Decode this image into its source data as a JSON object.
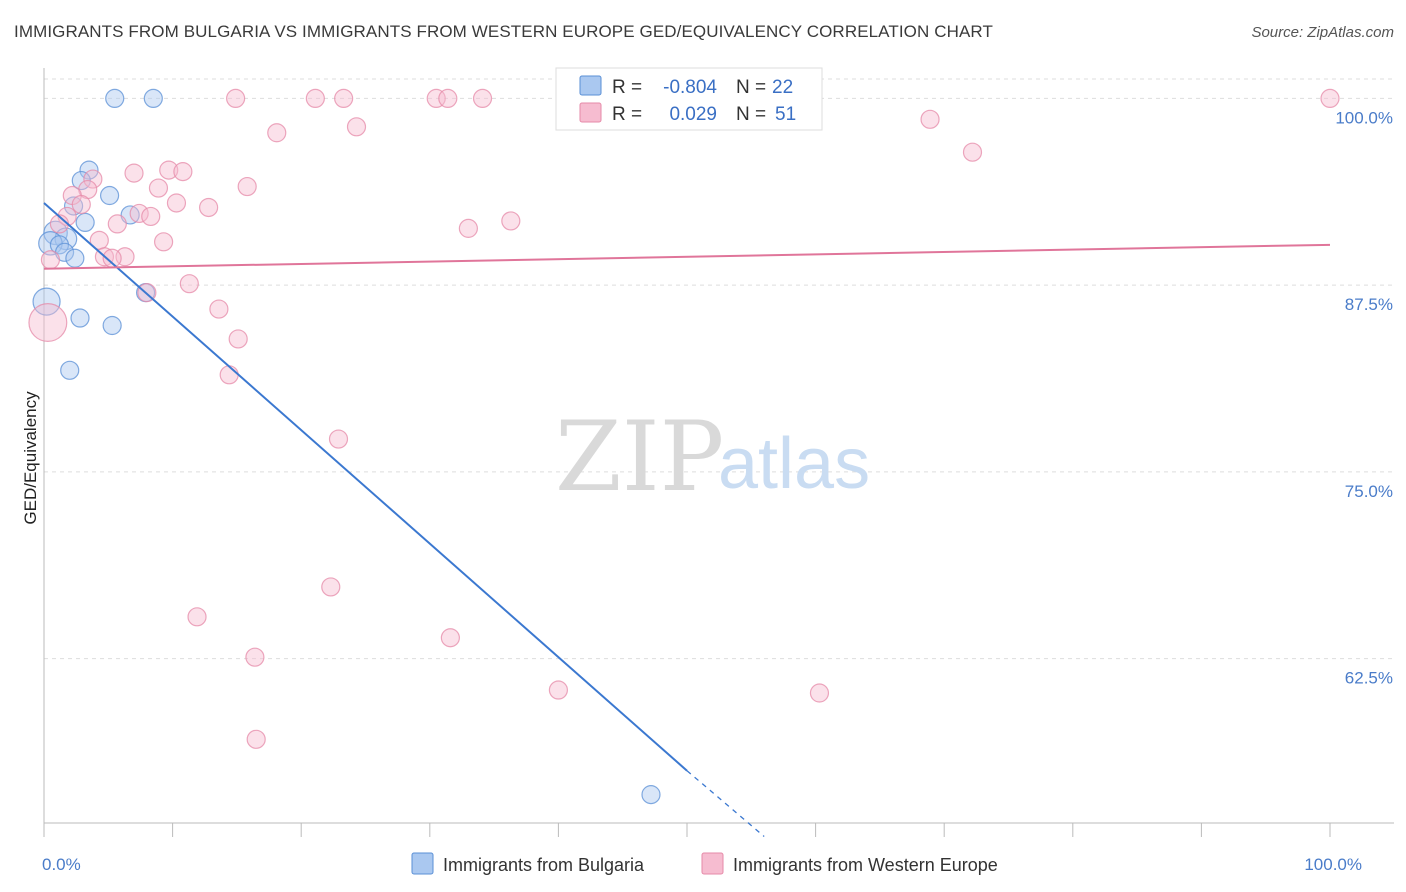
{
  "title": "IMMIGRANTS FROM BULGARIA VS IMMIGRANTS FROM WESTERN EUROPE GED/EQUIVALENCY CORRELATION CHART",
  "source": "Source: ZipAtlas.com",
  "watermark": {
    "zip": "ZIP",
    "atlas": "atlas"
  },
  "colors": {
    "bulgaria_fill": "#aac8f0",
    "bulgaria_stroke": "#5a8fd6",
    "bulgaria_line": "#3b78d0",
    "western_fill": "#f6bcd0",
    "western_stroke": "#e68aa8",
    "western_line": "#e0759a",
    "grid": "#dddddd",
    "axis": "#bbbbbb",
    "tick_text": "#4a7cc9"
  },
  "legend_box": {
    "rows": [
      {
        "r_label": "R =",
        "r_value": "-0.804",
        "n_label": "N =",
        "n_value": "22",
        "series": "bulgaria"
      },
      {
        "r_label": "R =",
        "r_value": "0.029",
        "n_label": "N =",
        "n_value": "51",
        "series": "western"
      }
    ]
  },
  "bottom_legend": [
    {
      "label": "Immigrants from Bulgaria",
      "series": "bulgaria"
    },
    {
      "label": "Immigrants from Western Europe",
      "series": "western"
    }
  ],
  "chart_data": {
    "type": "scatter",
    "xlabel": "",
    "ylabel": "GED/Equivalency",
    "xlim": [
      0,
      100
    ],
    "ylim": [
      51.5,
      101.5
    ],
    "x_tick_labels": [
      {
        "value": 0,
        "label": "0.0%"
      },
      {
        "value": 100,
        "label": "100.0%"
      }
    ],
    "y_tick_labels": [
      {
        "value": 100,
        "label": "100.0%"
      },
      {
        "value": 87.5,
        "label": "87.5%"
      },
      {
        "value": 75,
        "label": "75.0%"
      },
      {
        "value": 62.5,
        "label": "62.5%"
      }
    ],
    "x_minor_ticks": [
      0,
      10,
      20,
      30,
      40,
      50,
      60,
      70,
      80,
      90,
      100
    ],
    "grid": true,
    "series": [
      {
        "name": "Immigrants from Bulgaria",
        "key": "bulgaria",
        "points": [
          {
            "x": 5.5,
            "y": 100.0,
            "s": 1
          },
          {
            "x": 8.5,
            "y": 100.0,
            "s": 1
          },
          {
            "x": 3.5,
            "y": 95.2,
            "s": 1
          },
          {
            "x": 2.9,
            "y": 94.5,
            "s": 1
          },
          {
            "x": 5.1,
            "y": 93.5,
            "s": 1
          },
          {
            "x": 2.3,
            "y": 92.8,
            "s": 1
          },
          {
            "x": 6.7,
            "y": 92.2,
            "s": 1
          },
          {
            "x": 3.2,
            "y": 91.7,
            "s": 1
          },
          {
            "x": 0.9,
            "y": 91.0,
            "s": 1.3
          },
          {
            "x": 1.7,
            "y": 90.6,
            "s": 1.2
          },
          {
            "x": 0.5,
            "y": 90.3,
            "s": 1.3
          },
          {
            "x": 1.2,
            "y": 90.2,
            "s": 1
          },
          {
            "x": 1.6,
            "y": 89.7,
            "s": 1
          },
          {
            "x": 2.4,
            "y": 89.3,
            "s": 1
          },
          {
            "x": 7.9,
            "y": 87.0,
            "s": 1
          },
          {
            "x": 0.2,
            "y": 86.4,
            "s": 1.5
          },
          {
            "x": 2.8,
            "y": 85.3,
            "s": 1
          },
          {
            "x": 5.3,
            "y": 84.8,
            "s": 1
          },
          {
            "x": 2.0,
            "y": 81.8,
            "s": 1
          },
          {
            "x": 47.2,
            "y": 53.4,
            "s": 1
          }
        ],
        "trend": {
          "x0": 0.0,
          "y0": 93.0,
          "x1": 50.0,
          "y1": 55.0,
          "dash_to_x": 56.0,
          "dash_to_y": 50.6
        }
      },
      {
        "name": "Immigrants from Western Europe",
        "key": "western",
        "points": [
          {
            "x": 14.9,
            "y": 100.0,
            "s": 1
          },
          {
            "x": 21.1,
            "y": 100.0,
            "s": 1
          },
          {
            "x": 23.3,
            "y": 100.0,
            "s": 1
          },
          {
            "x": 30.5,
            "y": 100.0,
            "s": 1
          },
          {
            "x": 31.4,
            "y": 100.0,
            "s": 1
          },
          {
            "x": 34.1,
            "y": 100.0,
            "s": 1
          },
          {
            "x": 47.4,
            "y": 100.0,
            "s": 1
          },
          {
            "x": 100.0,
            "y": 100.0,
            "s": 1
          },
          {
            "x": 72.2,
            "y": 96.4,
            "s": 1
          },
          {
            "x": 68.9,
            "y": 98.6,
            "s": 1
          },
          {
            "x": 24.3,
            "y": 98.1,
            "s": 1
          },
          {
            "x": 18.1,
            "y": 97.7,
            "s": 1
          },
          {
            "x": 9.7,
            "y": 95.2,
            "s": 1
          },
          {
            "x": 10.8,
            "y": 95.1,
            "s": 1
          },
          {
            "x": 7.0,
            "y": 95.0,
            "s": 1
          },
          {
            "x": 3.8,
            "y": 94.6,
            "s": 1
          },
          {
            "x": 15.8,
            "y": 94.1,
            "s": 1
          },
          {
            "x": 8.9,
            "y": 94.0,
            "s": 1
          },
          {
            "x": 3.4,
            "y": 93.9,
            "s": 1
          },
          {
            "x": 2.2,
            "y": 93.5,
            "s": 1
          },
          {
            "x": 10.3,
            "y": 93.0,
            "s": 1
          },
          {
            "x": 2.9,
            "y": 92.9,
            "s": 1
          },
          {
            "x": 12.8,
            "y": 92.7,
            "s": 1
          },
          {
            "x": 7.4,
            "y": 92.3,
            "s": 1
          },
          {
            "x": 8.3,
            "y": 92.1,
            "s": 1
          },
          {
            "x": 1.8,
            "y": 92.1,
            "s": 1
          },
          {
            "x": 5.7,
            "y": 91.6,
            "s": 1
          },
          {
            "x": 33.0,
            "y": 91.3,
            "s": 1
          },
          {
            "x": 1.2,
            "y": 91.6,
            "s": 1
          },
          {
            "x": 4.3,
            "y": 90.5,
            "s": 1
          },
          {
            "x": 9.3,
            "y": 90.4,
            "s": 1
          },
          {
            "x": 4.7,
            "y": 89.4,
            "s": 1
          },
          {
            "x": 6.3,
            "y": 89.4,
            "s": 1
          },
          {
            "x": 5.3,
            "y": 89.3,
            "s": 1
          },
          {
            "x": 0.5,
            "y": 89.2,
            "s": 1
          },
          {
            "x": 11.3,
            "y": 87.6,
            "s": 1
          },
          {
            "x": 8.0,
            "y": 87.0,
            "s": 1
          },
          {
            "x": 13.6,
            "y": 85.9,
            "s": 1
          },
          {
            "x": 0.3,
            "y": 85.0,
            "s": 2.1
          },
          {
            "x": 15.1,
            "y": 83.9,
            "s": 1
          },
          {
            "x": 14.4,
            "y": 81.5,
            "s": 1
          },
          {
            "x": 22.9,
            "y": 77.2,
            "s": 1
          },
          {
            "x": 22.3,
            "y": 67.3,
            "s": 1
          },
          {
            "x": 11.9,
            "y": 65.3,
            "s": 1
          },
          {
            "x": 31.6,
            "y": 63.9,
            "s": 1
          },
          {
            "x": 16.4,
            "y": 62.6,
            "s": 1
          },
          {
            "x": 40.0,
            "y": 60.4,
            "s": 1
          },
          {
            "x": 60.3,
            "y": 60.2,
            "s": 1
          },
          {
            "x": 16.5,
            "y": 57.1,
            "s": 1
          },
          {
            "x": 36.3,
            "y": 91.8,
            "s": 1
          }
        ],
        "trend": {
          "x0": 0.0,
          "y0": 88.6,
          "x1": 100.0,
          "y1": 90.2
        }
      }
    ]
  }
}
